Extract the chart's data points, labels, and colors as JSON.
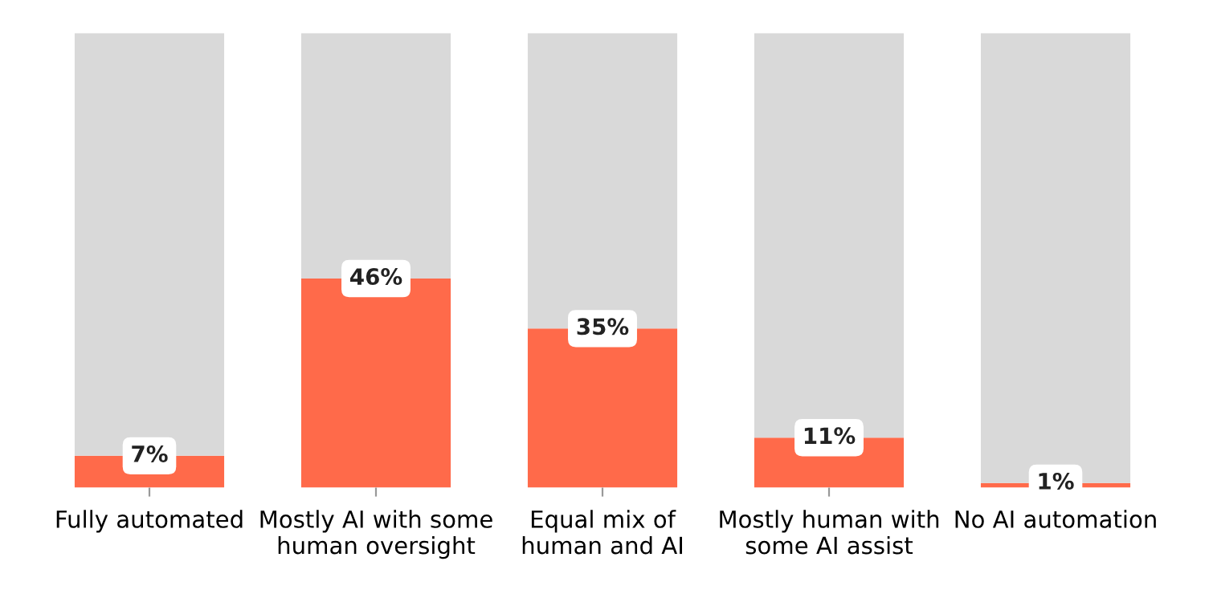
{
  "chart_data": {
    "type": "bar",
    "stacked": true,
    "categories": [
      "Fully automated",
      "Mostly AI with some\nhuman oversight",
      "Equal mix of\nhuman and AI",
      "Mostly human with\nsome AI assist",
      "No AI automation"
    ],
    "series": [
      {
        "color": "#ff6a4a",
        "values": [
          7,
          46,
          35,
          11,
          1
        ],
        "value_labels": [
          "7%",
          "46%",
          "35%",
          "11%",
          "1%"
        ]
      },
      {
        "color": "#d9d9d9",
        "values": [
          93,
          54,
          65,
          89,
          99
        ],
        "value_labels": [
          null,
          null,
          null,
          null,
          null
        ]
      }
    ],
    "ylim": [
      0,
      100
    ],
    "tick_labels": "x",
    "grid": false,
    "legend": false
  }
}
